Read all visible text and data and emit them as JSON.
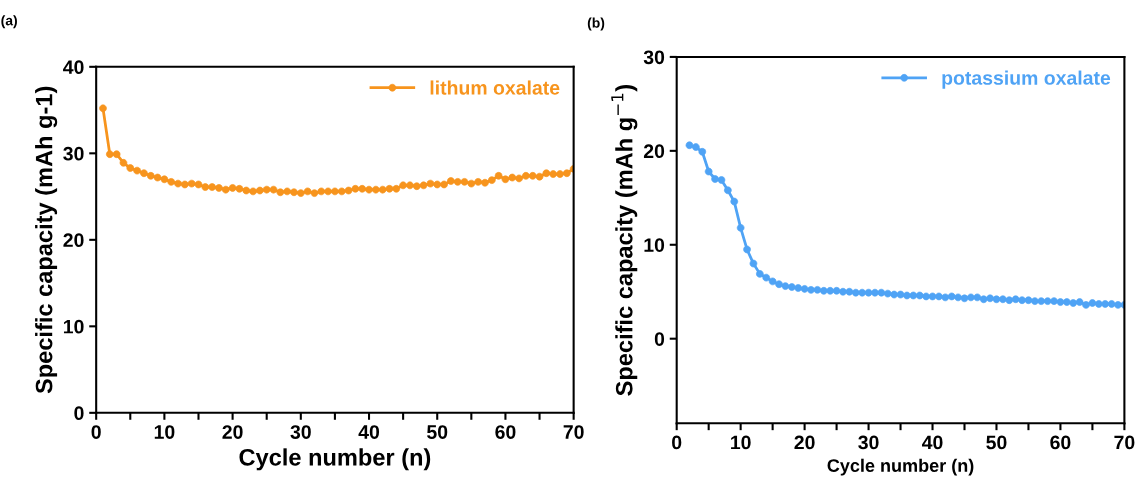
{
  "chart_data": [
    {
      "type": "line",
      "title": "(a)",
      "xlabel": "Cycle number (n)",
      "ylabel": "Specific capacity (mAh g-1)",
      "xlim": [
        0,
        70
      ],
      "ylim": [
        0,
        40
      ],
      "xticks": [
        0,
        {
          "value": 5,
          "label": null
        },
        10,
        {
          "value": 15,
          "label": null
        },
        20,
        {
          "value": 25,
          "label": null
        },
        30,
        {
          "value": 35,
          "label": null
        },
        40,
        {
          "value": 45,
          "label": null
        },
        50,
        {
          "value": 55,
          "label": null
        },
        60,
        {
          "value": 65,
          "label": null
        },
        70
      ],
      "yticks": [
        0,
        10,
        20,
        30,
        40
      ],
      "marker": "circle",
      "line_style": "solid",
      "legend": "top right",
      "grid": false,
      "x": [
        1,
        2,
        3,
        4,
        5,
        6,
        7,
        8,
        9,
        10,
        11,
        12,
        13,
        14,
        15,
        16,
        17,
        18,
        19,
        20,
        21,
        22,
        23,
        24,
        25,
        26,
        27,
        28,
        29,
        30,
        31,
        32,
        33,
        34,
        35,
        36,
        37,
        38,
        39,
        40,
        41,
        42,
        43,
        44,
        45,
        46,
        47,
        48,
        49,
        50,
        51,
        52,
        53,
        54,
        55,
        56,
        57,
        58,
        59,
        60,
        61,
        62,
        63,
        64,
        65,
        66,
        67,
        68,
        69,
        70
      ],
      "series": [
        {
          "name": "lithum oxalate",
          "color": "#f7941d",
          "values": [
            35.2,
            29.9,
            29.9,
            28.9,
            28.3,
            28.0,
            27.7,
            27.4,
            27.2,
            27.0,
            26.7,
            26.5,
            26.4,
            26.5,
            26.4,
            26.1,
            26.1,
            26.0,
            25.8,
            26.0,
            25.9,
            25.7,
            25.6,
            25.7,
            25.8,
            25.8,
            25.5,
            25.6,
            25.5,
            25.4,
            25.6,
            25.4,
            25.6,
            25.6,
            25.6,
            25.6,
            25.7,
            25.9,
            25.9,
            25.8,
            25.8,
            25.8,
            25.9,
            25.9,
            26.3,
            26.3,
            26.2,
            26.3,
            26.5,
            26.4,
            26.4,
            26.8,
            26.7,
            26.7,
            26.5,
            26.7,
            26.6,
            26.9,
            27.4,
            27.0,
            27.2,
            27.1,
            27.4,
            27.4,
            27.3,
            27.7,
            27.6,
            27.6,
            27.7,
            28.2
          ]
        }
      ]
    },
    {
      "type": "line",
      "title": "(b)",
      "xlabel": "Cycle number (n)",
      "ylabel": "Specific capacity (mAh g$^{−1}$)",
      "xlim": [
        0,
        70
      ],
      "ylim": [
        -9,
        30
      ],
      "xticks": [
        0,
        {
          "value": 5,
          "label": null
        },
        10,
        {
          "value": 15,
          "label": null
        },
        20,
        {
          "value": 25,
          "label": null
        },
        30,
        {
          "value": 35,
          "label": null
        },
        40,
        {
          "value": 45,
          "label": null
        },
        50,
        {
          "value": 55,
          "label": null
        },
        60,
        {
          "value": 65,
          "label": null
        },
        70
      ],
      "yticks": [
        0,
        10,
        20,
        30
      ],
      "marker": "circle",
      "line_style": "solid",
      "legend": "top right",
      "grid": false,
      "x": [
        2,
        3,
        4,
        5,
        6,
        7,
        8,
        9,
        10,
        11,
        12,
        13,
        14,
        15,
        16,
        17,
        18,
        19,
        20,
        21,
        22,
        23,
        24,
        25,
        26,
        27,
        28,
        29,
        30,
        31,
        32,
        33,
        34,
        35,
        36,
        37,
        38,
        39,
        40,
        41,
        42,
        43,
        44,
        45,
        46,
        47,
        48,
        49,
        50,
        51,
        52,
        53,
        54,
        55,
        56,
        57,
        58,
        59,
        60,
        61,
        62,
        63,
        64,
        65,
        66,
        67,
        68,
        69,
        70
      ],
      "series": [
        {
          "name": "potassium oxalate",
          "color": "#4fa3f5",
          "values": [
            20.6,
            20.4,
            19.9,
            17.8,
            17.0,
            16.9,
            15.8,
            14.6,
            11.8,
            9.5,
            8.0,
            6.9,
            6.5,
            6.1,
            5.8,
            5.6,
            5.5,
            5.4,
            5.3,
            5.2,
            5.2,
            5.1,
            5.1,
            5.1,
            5.0,
            5.0,
            4.9,
            4.9,
            4.9,
            4.9,
            4.9,
            4.8,
            4.7,
            4.7,
            4.6,
            4.6,
            4.6,
            4.5,
            4.5,
            4.5,
            4.4,
            4.5,
            4.4,
            4.3,
            4.4,
            4.4,
            4.2,
            4.3,
            4.2,
            4.2,
            4.1,
            4.2,
            4.1,
            4.1,
            4.0,
            4.0,
            4.0,
            4.0,
            3.9,
            3.9,
            3.8,
            3.9,
            3.6,
            3.8,
            3.7,
            3.7,
            3.7,
            3.6,
            3.6
          ]
        }
      ]
    }
  ]
}
